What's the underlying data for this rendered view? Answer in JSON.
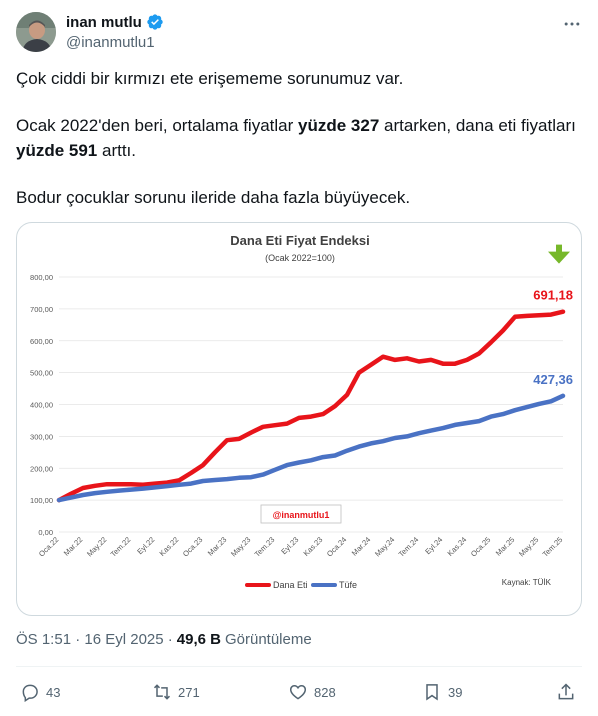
{
  "user": {
    "display_name": "inan mutlu",
    "handle": "@inanmutlu1",
    "verified_color": "#1d9bf0"
  },
  "icons": {
    "verified": "verified-badge-icon",
    "more": "more-horizontal-icon",
    "reply": "reply-icon",
    "retweet": "retweet-icon",
    "like": "heart-icon",
    "bookmark": "bookmark-icon",
    "share": "share-icon"
  },
  "tweet": {
    "p1": "Çok ciddi bir kırmızı ete erişememe sorunumuz var.",
    "p2_a": "Ocak 2022'den beri, ortalama fiyatlar ",
    "p2_b": "yüzde 327",
    "p2_c": " artarken, dana eti fiyatları ",
    "p2_d": "yüzde 591",
    "p2_e": " arttı.",
    "p3": "Bodur çocuklar sorunu ileride daha fazla büyüyecek."
  },
  "chart_data": {
    "type": "line",
    "title": "Dana Eti Fiyat Endeksi",
    "subtitle": "(Ocak 2022=100)",
    "watermark": "@inanmutlu1",
    "source": "Kaynak: TÜİK",
    "ylim": [
      0,
      800
    ],
    "yticks": [
      "0,00",
      "100,00",
      "200,00",
      "300,00",
      "400,00",
      "500,00",
      "600,00",
      "700,00",
      "800,00"
    ],
    "xtick_labels": [
      "Oca.22",
      "Mar.22",
      "May.22",
      "Tem.22",
      "Eyl.22",
      "Kas.22",
      "Oca.23",
      "Mar.23",
      "May.23",
      "Tem.23",
      "Eyl.23",
      "Kas.23",
      "Oca.24",
      "Mar.24",
      "May.24",
      "Tem.24",
      "Eyl.24",
      "Kas.24",
      "Oca.25",
      "Mar.25",
      "May.25",
      "Tem.25"
    ],
    "series": [
      {
        "name": "Dana Eti",
        "color": "#e8141a",
        "end_label": "691,18",
        "values": [
          100,
          120,
          138,
          145,
          150,
          150,
          150,
          148,
          152,
          155,
          162,
          185,
          210,
          250,
          288,
          292,
          312,
          330,
          335,
          340,
          358,
          362,
          370,
          395,
          430,
          500,
          525,
          550,
          540,
          545,
          535,
          540,
          528,
          528,
          540,
          560,
          595,
          632,
          675,
          678,
          680,
          682,
          691.18
        ]
      },
      {
        "name": "Tüfe",
        "color": "#4a72c4",
        "end_label": "427,36",
        "values": [
          100,
          108,
          116,
          122,
          126,
          130,
          133,
          136,
          140,
          144,
          148,
          152,
          160,
          163,
          166,
          170,
          172,
          180,
          195,
          210,
          218,
          225,
          235,
          240,
          255,
          268,
          278,
          285,
          295,
          300,
          310,
          318,
          326,
          336,
          342,
          348,
          362,
          370,
          382,
          392,
          402,
          410,
          427.36
        ]
      }
    ]
  },
  "meta": {
    "time": "ÖS 1:51 · 16 Eyl 2025 ·",
    "views_count": "49,6 B",
    "views_label": "Görüntüleme"
  },
  "actions": {
    "replies": "43",
    "retweets": "271",
    "likes": "828",
    "bookmarks": "39"
  }
}
